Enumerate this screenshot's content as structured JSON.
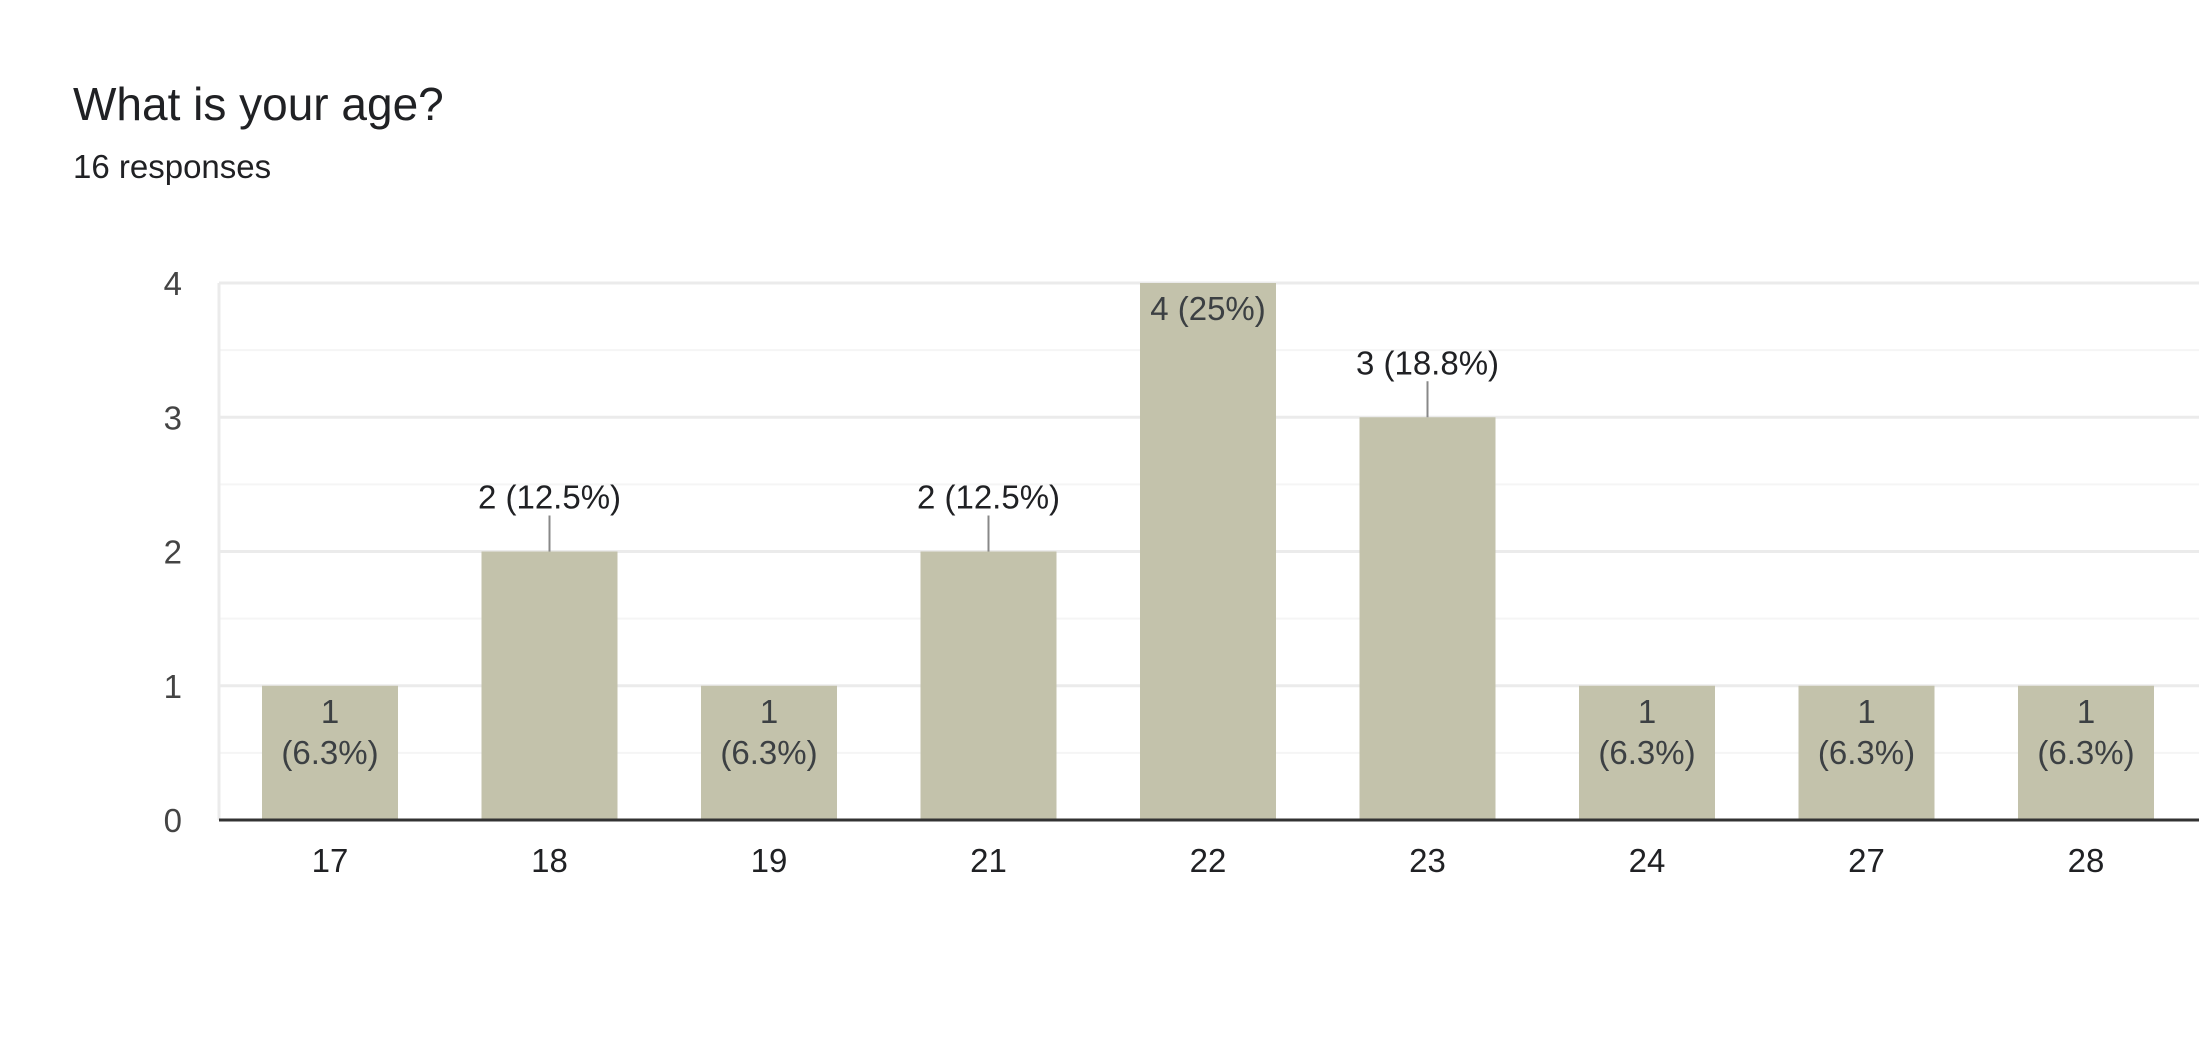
{
  "question": {
    "title": "What is your age?",
    "responses": "16 responses"
  },
  "colors": {
    "bar": "#c3c2ab",
    "gridline": "#ebebeb",
    "minor_gridline": "#f5f5f5",
    "axis": "#333333",
    "text": "#202124",
    "tick_text": "#444444",
    "inside_label": "#3c4043"
  },
  "chart_data": {
    "type": "bar",
    "categories": [
      "17",
      "18",
      "19",
      "21",
      "22",
      "23",
      "24",
      "27",
      "28"
    ],
    "values": [
      1,
      2,
      1,
      2,
      4,
      3,
      1,
      1,
      1
    ],
    "data_labels": [
      "1 (6.3%)",
      "2 (12.5%)",
      "1 (6.3%)",
      "2 (12.5%)",
      "4 (25%)",
      "3 (18.8%)",
      "1 (6.3%)",
      "1 (6.3%)",
      "1 (6.3%)"
    ],
    "label_position": [
      "inside",
      "above",
      "inside",
      "above",
      "inside",
      "above",
      "inside",
      "inside",
      "inside"
    ],
    "yticks": [
      0,
      1,
      2,
      3,
      4
    ],
    "ylim": [
      0,
      4
    ],
    "grid": true,
    "legend": "none"
  }
}
